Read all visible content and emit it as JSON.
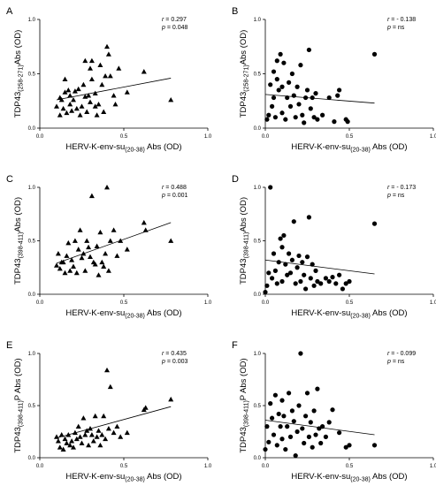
{
  "chart_data": [
    {
      "type": "scatter",
      "panel": "A",
      "marker": "triangle",
      "xlabel": {
        "pre": "HERV-K-env-su",
        "sub": "(20-38)",
        "post": " Abs (OD)"
      },
      "ylabel": {
        "pre": "TDP43",
        "sub": "(258-271)",
        "post": "Abs (OD)"
      },
      "xlim": [
        0,
        1
      ],
      "ylim": [
        0,
        1
      ],
      "xticks": [
        "0.0",
        "0.5",
        "1.0"
      ],
      "yticks": [
        "0.0",
        "0.5",
        "1.0"
      ],
      "stats": {
        "r_label": "r",
        "r": "0.297",
        "p_label": "p",
        "p": "0.048"
      },
      "trend": {
        "x": [
          0.1,
          0.78
        ],
        "y": [
          0.26,
          0.46
        ]
      },
      "points": [
        [
          0.1,
          0.2
        ],
        [
          0.12,
          0.12
        ],
        [
          0.12,
          0.28
        ],
        [
          0.13,
          0.26
        ],
        [
          0.14,
          0.18
        ],
        [
          0.15,
          0.33
        ],
        [
          0.15,
          0.45
        ],
        [
          0.16,
          0.14
        ],
        [
          0.17,
          0.35
        ],
        [
          0.18,
          0.22
        ],
        [
          0.18,
          0.3
        ],
        [
          0.19,
          0.16
        ],
        [
          0.2,
          0.26
        ],
        [
          0.21,
          0.34
        ],
        [
          0.22,
          0.18
        ],
        [
          0.23,
          0.36
        ],
        [
          0.24,
          0.12
        ],
        [
          0.25,
          0.2
        ],
        [
          0.26,
          0.4
        ],
        [
          0.27,
          0.29
        ],
        [
          0.27,
          0.62
        ],
        [
          0.28,
          0.15
        ],
        [
          0.29,
          0.3
        ],
        [
          0.3,
          0.24
        ],
        [
          0.3,
          0.55
        ],
        [
          0.31,
          0.45
        ],
        [
          0.31,
          0.62
        ],
        [
          0.33,
          0.2
        ],
        [
          0.33,
          0.32
        ],
        [
          0.34,
          0.12
        ],
        [
          0.35,
          0.22
        ],
        [
          0.36,
          0.58
        ],
        [
          0.37,
          0.4
        ],
        [
          0.38,
          0.15
        ],
        [
          0.39,
          0.48
        ],
        [
          0.4,
          0.75
        ],
        [
          0.41,
          0.68
        ],
        [
          0.42,
          0.48
        ],
        [
          0.44,
          0.3
        ],
        [
          0.45,
          0.22
        ],
        [
          0.47,
          0.55
        ],
        [
          0.52,
          0.33
        ],
        [
          0.62,
          0.52
        ],
        [
          0.78,
          0.26
        ]
      ]
    },
    {
      "type": "scatter",
      "panel": "B",
      "marker": "circle",
      "xlabel": {
        "pre": "HERV-K-env-su",
        "sub": "(20-38)",
        "post": " Abs (OD)"
      },
      "ylabel": {
        "pre": "TDP43",
        "sub": "(258-271)",
        "post": "Abs (OD)"
      },
      "xlim": [
        0,
        1
      ],
      "ylim": [
        0,
        1
      ],
      "xticks": [
        "0.0",
        "0.5",
        "1.0"
      ],
      "yticks": [
        "0.0",
        "0.5",
        "1.0"
      ],
      "stats": {
        "r_label": "r",
        "r": "- 0.138",
        "p_label": "p",
        "p": "ns"
      },
      "trend": {
        "x": [
          0.0,
          0.65
        ],
        "y": [
          0.31,
          0.23
        ]
      },
      "points": [
        [
          0.01,
          0.08
        ],
        [
          0.02,
          0.12
        ],
        [
          0.03,
          0.4
        ],
        [
          0.04,
          0.2
        ],
        [
          0.05,
          0.28
        ],
        [
          0.05,
          0.52
        ],
        [
          0.06,
          0.1
        ],
        [
          0.07,
          0.45
        ],
        [
          0.07,
          0.62
        ],
        [
          0.08,
          0.35
        ],
        [
          0.09,
          0.68
        ],
        [
          0.1,
          0.14
        ],
        [
          0.1,
          0.38
        ],
        [
          0.11,
          0.6
        ],
        [
          0.12,
          0.08
        ],
        [
          0.13,
          0.28
        ],
        [
          0.14,
          0.42
        ],
        [
          0.15,
          0.2
        ],
        [
          0.16,
          0.5
        ],
        [
          0.17,
          0.3
        ],
        [
          0.18,
          0.1
        ],
        [
          0.19,
          0.38
        ],
        [
          0.2,
          0.22
        ],
        [
          0.21,
          0.58
        ],
        [
          0.22,
          0.12
        ],
        [
          0.23,
          0.05
        ],
        [
          0.24,
          0.28
        ],
        [
          0.25,
          0.35
        ],
        [
          0.26,
          0.72
        ],
        [
          0.27,
          0.18
        ],
        [
          0.28,
          0.28
        ],
        [
          0.29,
          0.1
        ],
        [
          0.3,
          0.32
        ],
        [
          0.31,
          0.08
        ],
        [
          0.34,
          0.12
        ],
        [
          0.38,
          0.28
        ],
        [
          0.41,
          0.06
        ],
        [
          0.43,
          0.3
        ],
        [
          0.44,
          0.35
        ],
        [
          0.48,
          0.08
        ],
        [
          0.49,
          0.06
        ],
        [
          0.65,
          0.68
        ]
      ]
    },
    {
      "type": "scatter",
      "panel": "C",
      "marker": "triangle",
      "xlabel": {
        "pre": "HERV-K-env-su",
        "sub": "(20-38)",
        "post": " Abs (OD)"
      },
      "ylabel": {
        "pre": "TDP43",
        "sub": "(398-411)",
        "post": "Abs (OD)"
      },
      "xlim": [
        0,
        1
      ],
      "ylim": [
        0,
        1
      ],
      "xticks": [
        "0.0",
        "0.5",
        "1.0"
      ],
      "yticks": [
        "0.0",
        "0.5",
        "1.0"
      ],
      "stats": {
        "r_label": "r",
        "r": "0.488",
        "p_label": "p",
        "p": "0.001"
      },
      "trend": {
        "x": [
          0.1,
          0.78
        ],
        "y": [
          0.29,
          0.67
        ]
      },
      "points": [
        [
          0.1,
          0.27
        ],
        [
          0.11,
          0.38
        ],
        [
          0.12,
          0.24
        ],
        [
          0.13,
          0.3
        ],
        [
          0.14,
          0.3
        ],
        [
          0.15,
          0.2
        ],
        [
          0.16,
          0.36
        ],
        [
          0.17,
          0.48
        ],
        [
          0.18,
          0.22
        ],
        [
          0.19,
          0.32
        ],
        [
          0.2,
          0.26
        ],
        [
          0.21,
          0.5
        ],
        [
          0.22,
          0.2
        ],
        [
          0.23,
          0.42
        ],
        [
          0.24,
          0.6
        ],
        [
          0.25,
          0.34
        ],
        [
          0.26,
          0.38
        ],
        [
          0.27,
          0.22
        ],
        [
          0.28,
          0.5
        ],
        [
          0.29,
          0.44
        ],
        [
          0.3,
          0.35
        ],
        [
          0.31,
          0.92
        ],
        [
          0.32,
          0.3
        ],
        [
          0.33,
          0.28
        ],
        [
          0.34,
          0.45
        ],
        [
          0.35,
          0.18
        ],
        [
          0.36,
          0.58
        ],
        [
          0.37,
          0.3
        ],
        [
          0.38,
          0.26
        ],
        [
          0.39,
          0.38
        ],
        [
          0.4,
          1.0
        ],
        [
          0.41,
          0.22
        ],
        [
          0.42,
          0.5
        ],
        [
          0.44,
          0.6
        ],
        [
          0.46,
          0.36
        ],
        [
          0.48,
          0.5
        ],
        [
          0.52,
          0.42
        ],
        [
          0.62,
          0.67
        ],
        [
          0.63,
          0.6
        ],
        [
          0.78,
          0.5
        ]
      ]
    },
    {
      "type": "scatter",
      "panel": "D",
      "marker": "circle",
      "xlabel": {
        "pre": "HERV-K-env-su",
        "sub": "(20-38)",
        "post": " Abs (OD)"
      },
      "ylabel": {
        "pre": "TDP43",
        "sub": "(398-411)",
        "post": "Abs (OD)"
      },
      "xlim": [
        0,
        1
      ],
      "ylim": [
        0,
        1
      ],
      "xticks": [
        "0.0",
        "0.5",
        "1.0"
      ],
      "yticks": [
        "0.0",
        "0.5",
        "1.0"
      ],
      "stats": {
        "r_label": "r",
        "r": "- 0.173",
        "p_label": "p",
        "p": "ns"
      },
      "trend": {
        "x": [
          0.0,
          0.65
        ],
        "y": [
          0.32,
          0.19
        ]
      },
      "points": [
        [
          0.0,
          0.02
        ],
        [
          0.01,
          0.08
        ],
        [
          0.02,
          0.2
        ],
        [
          0.03,
          1.0
        ],
        [
          0.04,
          0.15
        ],
        [
          0.05,
          0.38
        ],
        [
          0.06,
          0.22
        ],
        [
          0.07,
          0.1
        ],
        [
          0.08,
          0.3
        ],
        [
          0.09,
          0.52
        ],
        [
          0.1,
          0.44
        ],
        [
          0.1,
          0.12
        ],
        [
          0.11,
          0.55
        ],
        [
          0.12,
          0.28
        ],
        [
          0.13,
          0.18
        ],
        [
          0.14,
          0.38
        ],
        [
          0.15,
          0.2
        ],
        [
          0.16,
          0.32
        ],
        [
          0.17,
          0.68
        ],
        [
          0.18,
          0.1
        ],
        [
          0.19,
          0.25
        ],
        [
          0.2,
          0.36
        ],
        [
          0.21,
          0.12
        ],
        [
          0.22,
          0.3
        ],
        [
          0.23,
          0.18
        ],
        [
          0.24,
          0.05
        ],
        [
          0.25,
          0.35
        ],
        [
          0.26,
          0.72
        ],
        [
          0.27,
          0.15
        ],
        [
          0.28,
          0.28
        ],
        [
          0.29,
          0.08
        ],
        [
          0.3,
          0.22
        ],
        [
          0.31,
          0.12
        ],
        [
          0.33,
          0.1
        ],
        [
          0.36,
          0.15
        ],
        [
          0.38,
          0.12
        ],
        [
          0.4,
          0.16
        ],
        [
          0.42,
          0.1
        ],
        [
          0.44,
          0.18
        ],
        [
          0.46,
          0.05
        ],
        [
          0.48,
          0.1
        ],
        [
          0.5,
          0.12
        ],
        [
          0.65,
          0.66
        ]
      ]
    },
    {
      "type": "scatter",
      "panel": "E",
      "marker": "triangle",
      "xlabel": {
        "pre": "HERV-K-env-su",
        "sub": "(20-38)",
        "post": " Abs (OD)"
      },
      "ylabel": {
        "pre": "TDP43",
        "sub": "(398-411)",
        "post": "P Abs (OD)"
      },
      "xlim": [
        0,
        1
      ],
      "ylim": [
        0,
        1
      ],
      "xticks": [
        "0.0",
        "0.5",
        "1.0"
      ],
      "yticks": [
        "0.0",
        "0.5",
        "1.0"
      ],
      "stats": {
        "r_label": "r",
        "r": "0.435",
        "p_label": "p",
        "p": "0.003"
      },
      "trend": {
        "x": [
          0.1,
          0.78
        ],
        "y": [
          0.19,
          0.49
        ]
      },
      "points": [
        [
          0.1,
          0.2
        ],
        [
          0.11,
          0.16
        ],
        [
          0.12,
          0.1
        ],
        [
          0.13,
          0.22
        ],
        [
          0.14,
          0.08
        ],
        [
          0.15,
          0.18
        ],
        [
          0.16,
          0.14
        ],
        [
          0.17,
          0.22
        ],
        [
          0.18,
          0.12
        ],
        [
          0.19,
          0.16
        ],
        [
          0.2,
          0.1
        ],
        [
          0.21,
          0.24
        ],
        [
          0.22,
          0.18
        ],
        [
          0.23,
          0.3
        ],
        [
          0.24,
          0.2
        ],
        [
          0.25,
          0.14
        ],
        [
          0.26,
          0.38
        ],
        [
          0.27,
          0.22
        ],
        [
          0.28,
          0.26
        ],
        [
          0.29,
          0.12
        ],
        [
          0.3,
          0.28
        ],
        [
          0.31,
          0.22
        ],
        [
          0.32,
          0.16
        ],
        [
          0.33,
          0.4
        ],
        [
          0.34,
          0.2
        ],
        [
          0.35,
          0.26
        ],
        [
          0.36,
          0.12
        ],
        [
          0.37,
          0.22
        ],
        [
          0.38,
          0.4
        ],
        [
          0.39,
          0.18
        ],
        [
          0.4,
          0.84
        ],
        [
          0.41,
          0.28
        ],
        [
          0.42,
          0.68
        ],
        [
          0.44,
          0.24
        ],
        [
          0.46,
          0.3
        ],
        [
          0.48,
          0.2
        ],
        [
          0.52,
          0.24
        ],
        [
          0.62,
          0.46
        ],
        [
          0.63,
          0.48
        ],
        [
          0.78,
          0.56
        ]
      ]
    },
    {
      "type": "scatter",
      "panel": "F",
      "marker": "circle",
      "xlabel": {
        "pre": "HERV-K-env-su",
        "sub": "(20-38)",
        "post": " Abs (OD)"
      },
      "ylabel": {
        "pre": "TDP43",
        "sub": "(398-411)",
        "post": "P Abs (OD)"
      },
      "xlim": [
        0,
        1
      ],
      "ylim": [
        0,
        1
      ],
      "xticks": [
        "0.0",
        "0.5",
        "1.0"
      ],
      "yticks": [
        "0.0",
        "0.5",
        "1.0"
      ],
      "stats": {
        "r_label": "r",
        "r": "- 0.099",
        "p_label": "p",
        "p": "ns"
      },
      "trend": {
        "x": [
          0.0,
          0.65
        ],
        "y": [
          0.36,
          0.22
        ]
      },
      "points": [
        [
          0.0,
          0.08
        ],
        [
          0.01,
          0.3
        ],
        [
          0.02,
          0.15
        ],
        [
          0.03,
          0.52
        ],
        [
          0.04,
          0.38
        ],
        [
          0.05,
          0.22
        ],
        [
          0.06,
          0.6
        ],
        [
          0.07,
          0.12
        ],
        [
          0.08,
          0.42
        ],
        [
          0.09,
          0.3
        ],
        [
          0.1,
          0.18
        ],
        [
          0.1,
          0.55
        ],
        [
          0.11,
          0.4
        ],
        [
          0.12,
          0.08
        ],
        [
          0.13,
          0.3
        ],
        [
          0.14,
          0.62
        ],
        [
          0.15,
          0.2
        ],
        [
          0.16,
          0.45
        ],
        [
          0.17,
          0.35
        ],
        [
          0.18,
          0.02
        ],
        [
          0.19,
          0.25
        ],
        [
          0.2,
          0.5
        ],
        [
          0.21,
          1.0
        ],
        [
          0.22,
          0.28
        ],
        [
          0.23,
          0.14
        ],
        [
          0.24,
          0.4
        ],
        [
          0.25,
          0.62
        ],
        [
          0.26,
          0.2
        ],
        [
          0.27,
          0.34
        ],
        [
          0.28,
          0.1
        ],
        [
          0.29,
          0.45
        ],
        [
          0.3,
          0.22
        ],
        [
          0.31,
          0.66
        ],
        [
          0.32,
          0.28
        ],
        [
          0.33,
          0.14
        ],
        [
          0.34,
          0.3
        ],
        [
          0.36,
          0.2
        ],
        [
          0.38,
          0.34
        ],
        [
          0.4,
          0.46
        ],
        [
          0.44,
          0.24
        ],
        [
          0.48,
          0.1
        ],
        [
          0.5,
          0.12
        ],
        [
          0.65,
          0.12
        ]
      ]
    }
  ]
}
